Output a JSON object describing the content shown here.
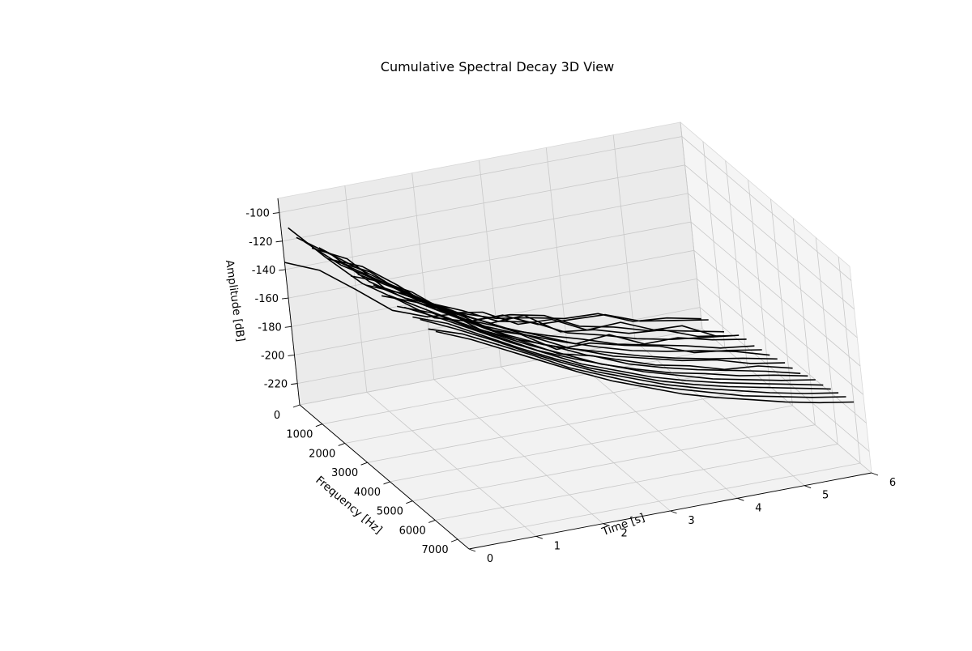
{
  "chart_data": {
    "type": "line3d",
    "title": "Cumulative Spectral Decay 3D View",
    "xlabel": "Time [s]",
    "ylabel": "Frequency [Hz]",
    "zlabel": "Amplitude [dB]",
    "xlim": [
      0,
      6
    ],
    "ylim": [
      0,
      7500
    ],
    "zlim": [
      -235,
      -90
    ],
    "x_ticks": [
      "0",
      "1",
      "2",
      "3",
      "4",
      "5",
      "6"
    ],
    "y_ticks": [
      "0",
      "1000",
      "2000",
      "3000",
      "4000",
      "5000",
      "6000",
      "7000"
    ],
    "z_ticks": [
      "-220",
      "-200",
      "-180",
      "-160",
      "-140",
      "-120",
      "-100"
    ],
    "grid": true,
    "line_color": "#000000",
    "time_points": [
      0.0,
      0.5,
      1.0,
      1.5,
      2.0,
      2.5,
      3.0,
      3.5,
      4.0,
      4.5,
      5.0,
      5.5,
      6.0
    ],
    "series": [
      {
        "frequency": 0,
        "amplitude": [
          -135,
          -145,
          -163,
          -182,
          -191,
          -193,
          -201,
          -205,
          -210,
          -211,
          -221,
          -223,
          -228
        ]
      },
      {
        "frequency": 350,
        "amplitude": [
          -106,
          -131,
          -154,
          -170,
          -187,
          -194,
          -194,
          -205,
          -206,
          -207,
          -216,
          -220,
          -224
        ]
      },
      {
        "frequency": 700,
        "amplitude": [
          -108,
          -125,
          -148,
          -164,
          -174,
          -188,
          -189,
          -194,
          -206,
          -211,
          -218,
          -219,
          -231
        ]
      },
      {
        "frequency": 1050,
        "amplitude": [
          -106,
          -127,
          -142,
          -155,
          -174,
          -178,
          -191,
          -192,
          -204,
          -203,
          -213,
          -218,
          -223
        ]
      },
      {
        "frequency": 1400,
        "amplitude": [
          -106,
          -118,
          -143,
          -156,
          -170,
          -181,
          -180,
          -196,
          -199,
          -206,
          -208,
          -217,
          -221
        ]
      },
      {
        "frequency": 1750,
        "amplitude": [
          -101,
          -119,
          -136,
          -153,
          -163,
          -175,
          -180,
          -192,
          -198,
          -205,
          -210,
          -213,
          -216
        ]
      },
      {
        "frequency": 2100,
        "amplitude": [
          -104,
          -114,
          -132,
          -153,
          -163,
          -175,
          -185,
          -195,
          -193,
          -204,
          -204,
          -210,
          -214
        ]
      },
      {
        "frequency": 2450,
        "amplitude": [
          -101,
          -113,
          -134,
          -147,
          -160,
          -172,
          -180,
          -187,
          -195,
          -200,
          -205,
          -211,
          -214
        ]
      },
      {
        "frequency": 2800,
        "amplitude": [
          -98,
          -114,
          -130,
          -147,
          -160,
          -170,
          -185,
          -185,
          -191,
          -196,
          -205,
          -208,
          -212
        ]
      },
      {
        "frequency": 3150,
        "amplitude": [
          -102,
          -111,
          -127,
          -142,
          -158,
          -166,
          -175,
          -183,
          -190,
          -195,
          -199,
          -204,
          -211
        ]
      },
      {
        "frequency": 3500,
        "amplitude": [
          -96,
          -110,
          -126,
          -141,
          -151,
          -163,
          -175,
          -182,
          -189,
          -195,
          -200,
          -204,
          -209
        ]
      },
      {
        "frequency": 3850,
        "amplitude": [
          -99,
          -109,
          -124,
          -139,
          -152,
          -163,
          -171,
          -180,
          -186,
          -192,
          -196,
          -203,
          -207
        ]
      },
      {
        "frequency": 4200,
        "amplitude": [
          -94,
          -109,
          -121,
          -139,
          -150,
          -159,
          -170,
          -178,
          -186,
          -191,
          -198,
          -200,
          -206
        ]
      },
      {
        "frequency": 4550,
        "amplitude": [
          -97,
          -106,
          -120,
          -134,
          -147,
          -160,
          -166,
          -176,
          -183,
          -189,
          -194,
          -199,
          -205
        ]
      },
      {
        "frequency": 4900,
        "amplitude": [
          -92,
          -106,
          -120,
          -133,
          -145,
          -156,
          -167,
          -175,
          -182,
          -187,
          -193,
          -197,
          -202
        ]
      },
      {
        "frequency": 5250,
        "amplitude": [
          -95,
          -104,
          -118,
          -131,
          -144,
          -154,
          -163,
          -172,
          -179,
          -186,
          -191,
          -196,
          -200
        ]
      },
      {
        "frequency": 5600,
        "amplitude": [
          -91,
          -103,
          -116,
          -129,
          -141,
          -153,
          -162,
          -171,
          -178,
          -184,
          -189,
          -194,
          -199
        ]
      },
      {
        "frequency": 5950,
        "amplitude": [
          -93,
          -102,
          -115,
          -128,
          -140,
          -151,
          -160,
          -169,
          -176,
          -182,
          -187,
          -192,
          -197
        ]
      },
      {
        "frequency": 6300,
        "amplitude": [
          -90,
          -101,
          -113,
          -126,
          -138,
          -149,
          -158,
          -167,
          -174,
          -180,
          -186,
          -191,
          -195
        ]
      },
      {
        "frequency": 6650,
        "amplitude": [
          -92,
          -100,
          -112,
          -124,
          -137,
          -147,
          -157,
          -165,
          -172,
          -179,
          -184,
          -189,
          -193
        ]
      },
      {
        "frequency": 7000,
        "amplitude": [
          -89,
          -99,
          -111,
          -123,
          -135,
          -146,
          -155,
          -164,
          -171,
          -177,
          -183,
          -188,
          -192
        ]
      }
    ]
  }
}
